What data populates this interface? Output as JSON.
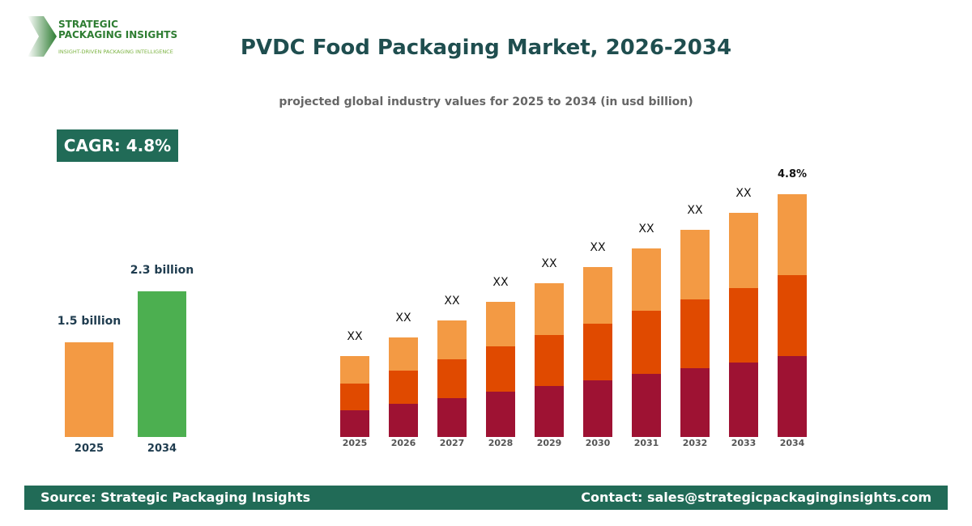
{
  "logo": {
    "name_line1": "STRATEGIC",
    "name_line2": "PACKAGING INSIGHTS",
    "tagline": "INSIGHT-DRIVEN PACKAGING INTELLIGENCE"
  },
  "title": "PVDC Food Packaging Market, 2026-2034",
  "subtitle": "projected global industry values for 2025 to 2034 (in usd billion)",
  "cagr_badge": "CAGR: 4.8%",
  "footer": {
    "source": "Source: Strategic Packaging Insights",
    "contact": "Contact: sales@strategicpackaginginsights.com"
  },
  "chart_data": [
    {
      "type": "bar",
      "categories": [
        "2025",
        "2034"
      ],
      "values": [
        1.5,
        2.3
      ],
      "data_labels": [
        "1.5 billion",
        "2.3 billion"
      ],
      "colors": [
        "#f39a44",
        "#4caf50"
      ]
    },
    {
      "type": "bar",
      "stacked": true,
      "categories": [
        "2025",
        "2026",
        "2027",
        "2028",
        "2029",
        "2030",
        "2031",
        "2032",
        "2033",
        "2034"
      ],
      "series": [
        {
          "color": "#9e1233",
          "values": [
            33,
            41,
            48,
            56,
            63,
            70,
            78,
            85,
            92,
            100
          ]
        },
        {
          "color": "#e04a00",
          "values": [
            33,
            41,
            48,
            56,
            63,
            70,
            78,
            85,
            92,
            100
          ]
        },
        {
          "color": "#f39a44",
          "values": [
            34,
            41,
            48,
            55,
            64,
            70,
            77,
            86,
            93,
            100
          ]
        }
      ],
      "data_labels": [
        "XX",
        "XX",
        "XX",
        "XX",
        "XX",
        "XX",
        "XX",
        "XX",
        "XX",
        "4.8%"
      ],
      "y_axis_shown": false,
      "grid": false,
      "legend": "none"
    }
  ]
}
